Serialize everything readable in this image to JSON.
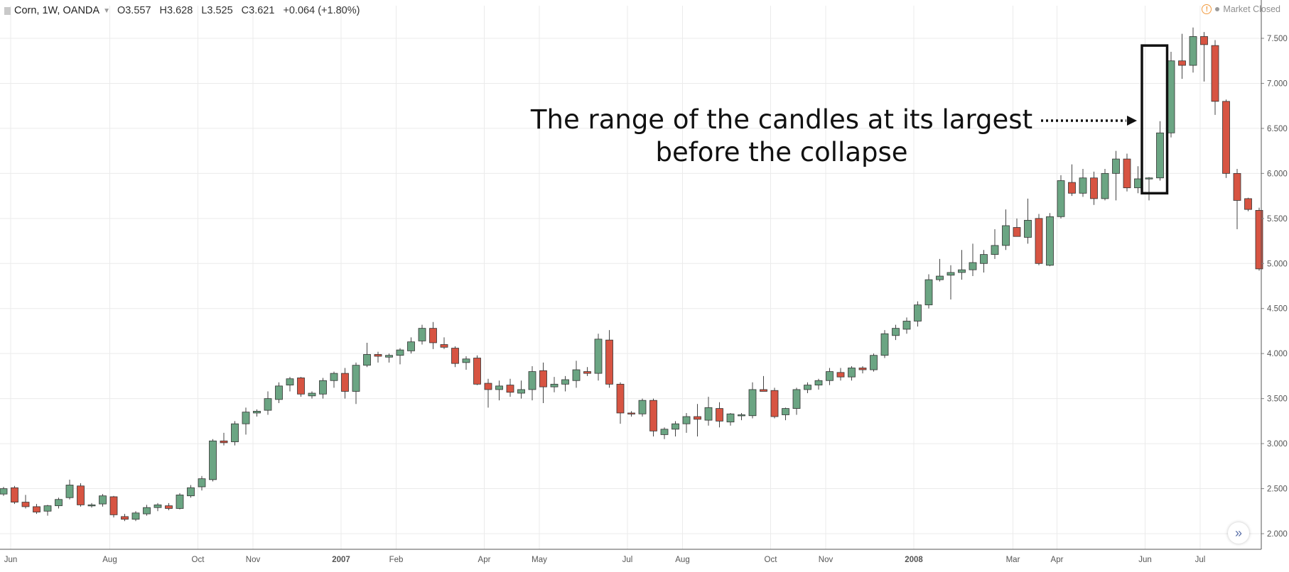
{
  "header": {
    "symbol": "Corn, 1W, OANDA",
    "open": "O3.557",
    "high": "H3.628",
    "low": "L3.525",
    "close": "C3.621",
    "change": "+0.064 (+1.80%)",
    "status_text": "Market Closed",
    "warning_icon": "warning-icon",
    "dropdown_icon": "chevron-down-icon",
    "scroll_icon": "double-chevron-right-icon"
  },
  "annotation": {
    "line1": "The range of the candles at its largest",
    "line2": "before the collapse"
  },
  "colors": {
    "up": "#6ba583",
    "down": "#d75442",
    "grid": "#ebebeb",
    "axis": "#555555",
    "box": "#111111"
  },
  "chart_data": {
    "type": "candlestick",
    "title": "Corn, 1W, OANDA",
    "ylim": [
      1.85,
      7.65
    ],
    "yticks": [
      "2.000",
      "2.500",
      "3.000",
      "3.500",
      "4.000",
      "4.500",
      "5.000",
      "5.500",
      "6.000",
      "6.500",
      "7.000",
      "7.500"
    ],
    "xticks": [
      {
        "label": "Jun",
        "i": 0
      },
      {
        "label": "Aug",
        "i": 9
      },
      {
        "label": "Oct",
        "i": 17
      },
      {
        "label": "Nov",
        "i": 22
      },
      {
        "label": "2007",
        "i": 30,
        "bold": true
      },
      {
        "label": "Feb",
        "i": 35
      },
      {
        "label": "Apr",
        "i": 43
      },
      {
        "label": "May",
        "i": 48
      },
      {
        "label": "Jul",
        "i": 56
      },
      {
        "label": "Aug",
        "i": 61
      },
      {
        "label": "Oct",
        "i": 69
      },
      {
        "label": "Nov",
        "i": 74
      },
      {
        "label": "2008",
        "i": 82,
        "bold": true
      },
      {
        "label": "Mar",
        "i": 91
      },
      {
        "label": "Apr",
        "i": 95
      },
      {
        "label": "Jun",
        "i": 103
      },
      {
        "label": "Jul",
        "i": 108
      }
    ],
    "candles": [
      [
        2.44,
        2.52,
        2.42,
        2.5
      ],
      [
        2.51,
        2.53,
        2.33,
        2.35
      ],
      [
        2.35,
        2.43,
        2.28,
        2.3
      ],
      [
        2.3,
        2.33,
        2.22,
        2.24
      ],
      [
        2.25,
        2.32,
        2.2,
        2.31
      ],
      [
        2.31,
        2.4,
        2.28,
        2.38
      ],
      [
        2.4,
        2.6,
        2.38,
        2.54
      ],
      [
        2.53,
        2.56,
        2.3,
        2.32
      ],
      [
        2.31,
        2.34,
        2.29,
        2.32
      ],
      [
        2.33,
        2.44,
        2.3,
        2.42
      ],
      [
        2.41,
        2.42,
        2.18,
        2.21
      ],
      [
        2.19,
        2.22,
        2.14,
        2.16
      ],
      [
        2.16,
        2.25,
        2.14,
        2.23
      ],
      [
        2.22,
        2.32,
        2.2,
        2.29
      ],
      [
        2.29,
        2.34,
        2.25,
        2.32
      ],
      [
        2.31,
        2.34,
        2.26,
        2.28
      ],
      [
        2.28,
        2.45,
        2.27,
        2.43
      ],
      [
        2.42,
        2.54,
        2.4,
        2.51
      ],
      [
        2.52,
        2.64,
        2.48,
        2.61
      ],
      [
        2.6,
        3.05,
        2.58,
        3.03
      ],
      [
        3.03,
        3.12,
        2.98,
        3.01
      ],
      [
        3.02,
        3.25,
        2.98,
        3.22
      ],
      [
        3.22,
        3.4,
        3.1,
        3.35
      ],
      [
        3.34,
        3.38,
        3.3,
        3.36
      ],
      [
        3.37,
        3.58,
        3.32,
        3.5
      ],
      [
        3.49,
        3.68,
        3.45,
        3.64
      ],
      [
        3.65,
        3.74,
        3.58,
        3.72
      ],
      [
        3.73,
        3.74,
        3.52,
        3.55
      ],
      [
        3.53,
        3.58,
        3.5,
        3.56
      ],
      [
        3.55,
        3.73,
        3.5,
        3.7
      ],
      [
        3.7,
        3.8,
        3.62,
        3.78
      ],
      [
        3.78,
        3.84,
        3.5,
        3.58
      ],
      [
        3.58,
        3.9,
        3.44,
        3.87
      ],
      [
        3.87,
        4.12,
        3.85,
        3.99
      ],
      [
        3.99,
        4.02,
        3.9,
        3.97
      ],
      [
        3.96,
        4.0,
        3.9,
        3.98
      ],
      [
        3.98,
        4.06,
        3.88,
        4.04
      ],
      [
        4.03,
        4.18,
        4.0,
        4.13
      ],
      [
        4.14,
        4.32,
        4.1,
        4.28
      ],
      [
        4.28,
        4.35,
        4.05,
        4.12
      ],
      [
        4.1,
        4.18,
        4.05,
        4.07
      ],
      [
        4.06,
        4.08,
        3.85,
        3.89
      ],
      [
        3.9,
        3.97,
        3.82,
        3.94
      ],
      [
        3.95,
        3.98,
        3.65,
        3.66
      ],
      [
        3.67,
        3.72,
        3.4,
        3.6
      ],
      [
        3.6,
        3.7,
        3.48,
        3.64
      ],
      [
        3.65,
        3.72,
        3.52,
        3.57
      ],
      [
        3.56,
        3.7,
        3.5,
        3.6
      ],
      [
        3.6,
        3.86,
        3.48,
        3.8
      ],
      [
        3.81,
        3.9,
        3.45,
        3.63
      ],
      [
        3.63,
        3.74,
        3.57,
        3.66
      ],
      [
        3.66,
        3.75,
        3.58,
        3.71
      ],
      [
        3.7,
        3.92,
        3.62,
        3.82
      ],
      [
        3.8,
        3.85,
        3.75,
        3.78
      ],
      [
        3.78,
        4.22,
        3.7,
        4.16
      ],
      [
        4.15,
        4.26,
        3.62,
        3.66
      ],
      [
        3.66,
        3.68,
        3.22,
        3.34
      ],
      [
        3.34,
        3.36,
        3.3,
        3.33
      ],
      [
        3.33,
        3.5,
        3.3,
        3.48
      ],
      [
        3.48,
        3.5,
        3.08,
        3.14
      ],
      [
        3.1,
        3.18,
        3.05,
        3.16
      ],
      [
        3.16,
        3.25,
        3.08,
        3.22
      ],
      [
        3.22,
        3.34,
        3.12,
        3.3
      ],
      [
        3.3,
        3.44,
        3.08,
        3.27
      ],
      [
        3.26,
        3.52,
        3.2,
        3.4
      ],
      [
        3.39,
        3.46,
        3.18,
        3.25
      ],
      [
        3.24,
        3.34,
        3.2,
        3.33
      ],
      [
        3.31,
        3.34,
        3.26,
        3.32
      ],
      [
        3.31,
        3.68,
        3.28,
        3.6
      ],
      [
        3.6,
        3.75,
        3.58,
        3.58
      ],
      [
        3.59,
        3.62,
        3.28,
        3.3
      ],
      [
        3.32,
        3.4,
        3.26,
        3.39
      ],
      [
        3.39,
        3.62,
        3.32,
        3.6
      ],
      [
        3.6,
        3.68,
        3.56,
        3.65
      ],
      [
        3.65,
        3.72,
        3.6,
        3.7
      ],
      [
        3.7,
        3.84,
        3.65,
        3.8
      ],
      [
        3.79,
        3.84,
        3.7,
        3.74
      ],
      [
        3.74,
        3.86,
        3.7,
        3.84
      ],
      [
        3.84,
        3.86,
        3.78,
        3.82
      ],
      [
        3.82,
        4.0,
        3.8,
        3.98
      ],
      [
        3.98,
        4.26,
        3.95,
        4.22
      ],
      [
        4.2,
        4.32,
        4.15,
        4.28
      ],
      [
        4.27,
        4.4,
        4.22,
        4.36
      ],
      [
        4.36,
        4.58,
        4.3,
        4.54
      ],
      [
        4.54,
        4.88,
        4.5,
        4.82
      ],
      [
        4.82,
        5.05,
        4.8,
        4.86
      ],
      [
        4.87,
        4.98,
        4.6,
        4.9
      ],
      [
        4.9,
        5.15,
        4.82,
        4.93
      ],
      [
        4.93,
        5.22,
        4.86,
        5.01
      ],
      [
        5.0,
        5.15,
        4.9,
        5.1
      ],
      [
        5.1,
        5.38,
        5.05,
        5.2
      ],
      [
        5.2,
        5.6,
        5.15,
        5.42
      ],
      [
        5.4,
        5.5,
        5.3,
        5.3
      ],
      [
        5.29,
        5.72,
        5.22,
        5.48
      ],
      [
        5.5,
        5.55,
        4.98,
        5.0
      ],
      [
        4.98,
        5.56,
        4.97,
        5.52
      ],
      [
        5.52,
        5.98,
        5.5,
        5.92
      ],
      [
        5.9,
        6.1,
        5.75,
        5.78
      ],
      [
        5.78,
        6.05,
        5.74,
        5.95
      ],
      [
        5.95,
        6.02,
        5.65,
        5.72
      ],
      [
        5.72,
        6.05,
        5.7,
        6.0
      ],
      [
        6.0,
        6.25,
        5.7,
        6.16
      ],
      [
        6.16,
        6.22,
        5.8,
        5.84
      ],
      [
        5.84,
        6.08,
        5.78,
        5.94
      ],
      [
        5.95,
        5.96,
        5.7,
        5.95
      ],
      [
        5.95,
        6.58,
        5.92,
        6.45
      ],
      [
        6.45,
        7.35,
        6.4,
        7.25
      ],
      [
        7.25,
        7.55,
        7.05,
        7.2
      ],
      [
        7.2,
        7.62,
        7.12,
        7.52
      ],
      [
        7.52,
        7.57,
        7.02,
        7.43
      ],
      [
        7.42,
        7.48,
        6.65,
        6.8
      ],
      [
        6.8,
        6.82,
        5.95,
        6.0
      ],
      [
        6.0,
        6.05,
        5.38,
        5.7
      ],
      [
        5.72,
        5.73,
        5.58,
        5.6
      ],
      [
        5.59,
        5.62,
        4.92,
        4.94
      ]
    ],
    "highlight": {
      "from": 104,
      "to": 105,
      "top": 7.42,
      "bottom": 5.78
    }
  }
}
